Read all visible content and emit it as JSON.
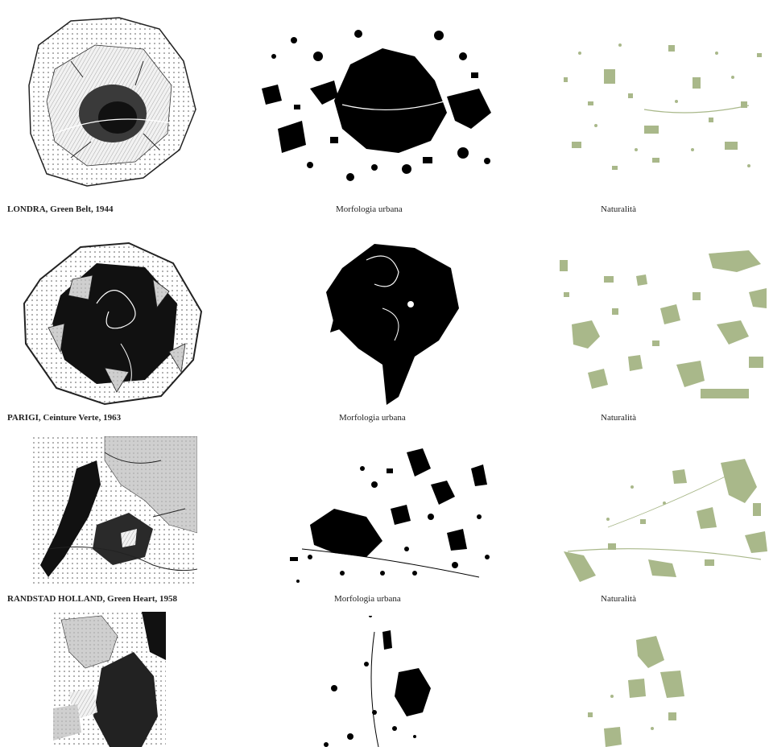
{
  "rows": [
    {
      "city": "LONDRA",
      "detail": ", Green Belt, 1944",
      "morph_label": "Morfologia urbana",
      "nat_label": "Naturalità"
    },
    {
      "city": "PARIGI",
      "detail": ", Ceinture Verte, 1963",
      "morph_label": "Morfologia urbana",
      "nat_label": "Naturalità"
    },
    {
      "city": "RANDSTAD HOLLAND",
      "detail": ", Green Heart, 1958",
      "morph_label": "Morfologia urbana",
      "nat_label": "Naturalità"
    },
    {
      "city": "",
      "detail": "",
      "morph_label": "",
      "nat_label": ""
    }
  ],
  "colors": {
    "urban": "#000000",
    "nature": "#a9b88a",
    "stipple": "#555555",
    "background": "#ffffff"
  }
}
